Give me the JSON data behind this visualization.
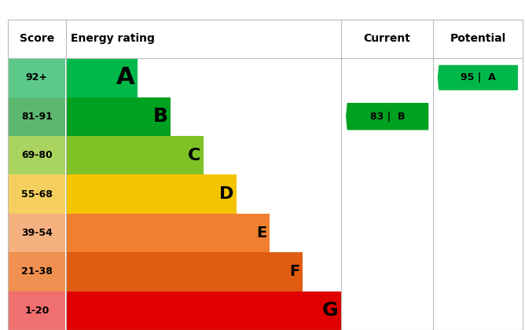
{
  "score_labels": [
    "92+",
    "81-91",
    "69-80",
    "55-68",
    "39-54",
    "21-38",
    "1-20"
  ],
  "rating_letters": [
    "A",
    "B",
    "C",
    "D",
    "E",
    "F",
    "G"
  ],
  "bar_colors": [
    "#00b84a",
    "#00a020",
    "#7ec225",
    "#f5c400",
    "#f08030",
    "#e05c10",
    "#e00000"
  ],
  "score_bg_colors": [
    "#5cc88a",
    "#5cb870",
    "#aad460",
    "#f5d060",
    "#f5b080",
    "#f09050",
    "#f07070"
  ],
  "current_value": 83,
  "current_label": "B",
  "current_color": "#00a020",
  "potential_value": 95,
  "potential_label": "A",
  "potential_color": "#00b84a",
  "header_score": "Score",
  "header_energy": "Energy rating",
  "header_current": "Current",
  "header_potential": "Potential",
  "letter_sizes": [
    22,
    18,
    16,
    16,
    14,
    14,
    18
  ],
  "score_font_size": 9,
  "header_font_size": 10
}
